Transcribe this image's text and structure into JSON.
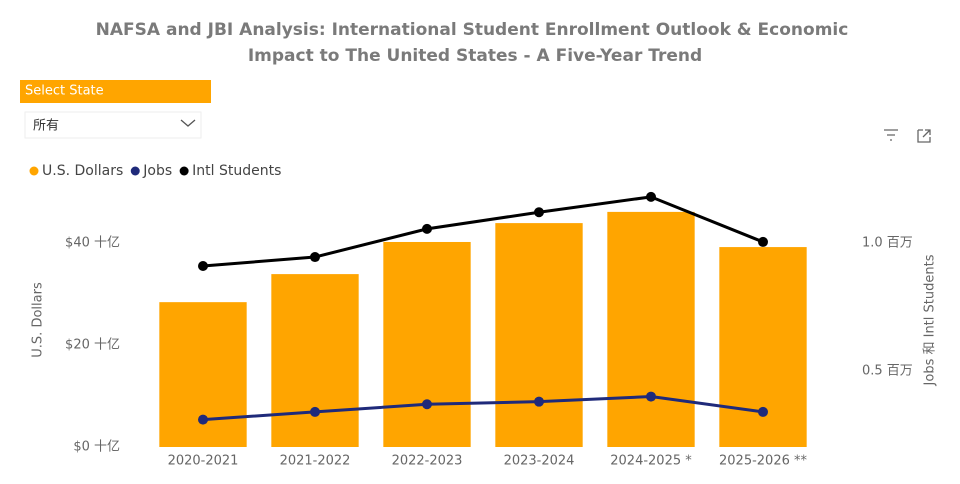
{
  "slicer": {
    "label": "Select State",
    "selected": "所有"
  },
  "chart_data": {
    "type": "combo",
    "title": "NAFSA and JBI Analysis: International Student Enrollment Outlook & Economic",
    "subtitle": "Impact to The United States - A Five-Year Trend",
    "y_label": "U.S. Dollars",
    "y2_label": "Jobs 和 Intl Students",
    "categories": [
      "2020-2021",
      "2021-2022",
      "2022-2023",
      "2023-2024",
      "2024-2025 *",
      "2025-2026 **"
    ],
    "series": [
      {
        "name": "U.S. Dollars",
        "type": "bar",
        "color": "#FFA500",
        "values": [
          28400000000,
          33900000000,
          40200000000,
          43900000000,
          46100000000,
          39200000000
        ]
      },
      {
        "name": "Jobs",
        "type": "line",
        "axis": "y2",
        "color": "#1F2A7A",
        "values": [
          310000,
          340000,
          370000,
          380000,
          400000,
          340000
        ]
      },
      {
        "name": "Intl Students",
        "type": "line",
        "axis": "y2",
        "color": "#000000",
        "values": [
          910000,
          945000,
          1055000,
          1120000,
          1180000,
          1004000
        ]
      }
    ],
    "ylim": [
      0,
      50000000000
    ],
    "yticks": [
      {
        "value": 0,
        "label": "$0 十亿"
      },
      {
        "value": 20000000000,
        "label": "$20 十亿"
      },
      {
        "value": 40000000000,
        "label": "$40 十亿"
      }
    ],
    "y2lim": [
      203000,
      1199000
    ],
    "y2ticks": [
      {
        "value": 500000,
        "label": "0.5 百万"
      },
      {
        "value": 1000000,
        "label": "1.0 百万"
      }
    ],
    "grid": false,
    "legend": "top-left"
  }
}
